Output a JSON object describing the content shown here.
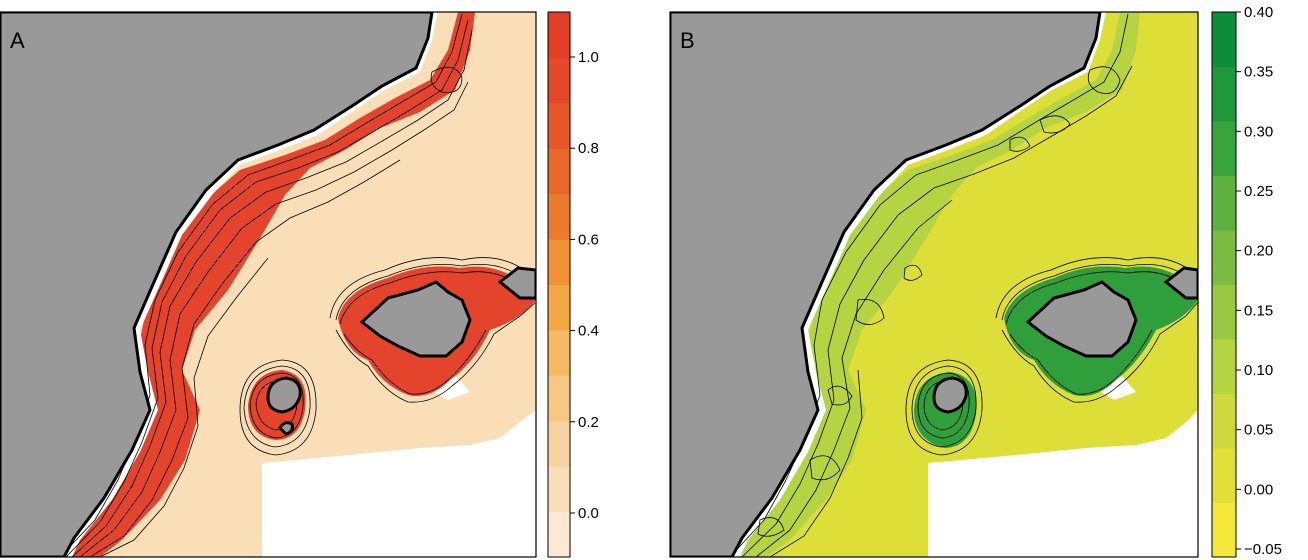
{
  "panels": [
    {
      "label": "A",
      "colors": {
        "land": "#999999",
        "sea": "#f9deb8",
        "high": "#e4442b",
        "edge": "#ffffff"
      },
      "colorbar": {
        "bins": [
          "#fde8d4",
          "#f9deb8",
          "#f8d3a2",
          "#f7c785",
          "#f6b964",
          "#f4a843",
          "#f09133",
          "#ec7a2d",
          "#e9672b",
          "#e65729",
          "#e4472a",
          "#e23e28"
        ],
        "ticks": [
          "1.0",
          "0.8",
          "0.6",
          "0.4",
          "0.2",
          "0.0"
        ]
      }
    },
    {
      "label": "B",
      "colors": {
        "land": "#999999",
        "sea": "#dede38",
        "mid": "#b6d341",
        "high": "#2f9f3b",
        "edge": "#ffffff"
      },
      "colorbar": {
        "bins": [
          "#f5e83a",
          "#e3df39",
          "#cfd93d",
          "#b6d341",
          "#9ac843",
          "#7dbc42",
          "#5cb140",
          "#3aa43c",
          "#1f9839",
          "#0b8e37"
        ],
        "ticks": [
          "0.40",
          "0.35",
          "0.30",
          "0.25",
          "0.20",
          "0.15",
          "0.10",
          "0.05",
          "0.00",
          "−0.05"
        ]
      }
    }
  ]
}
